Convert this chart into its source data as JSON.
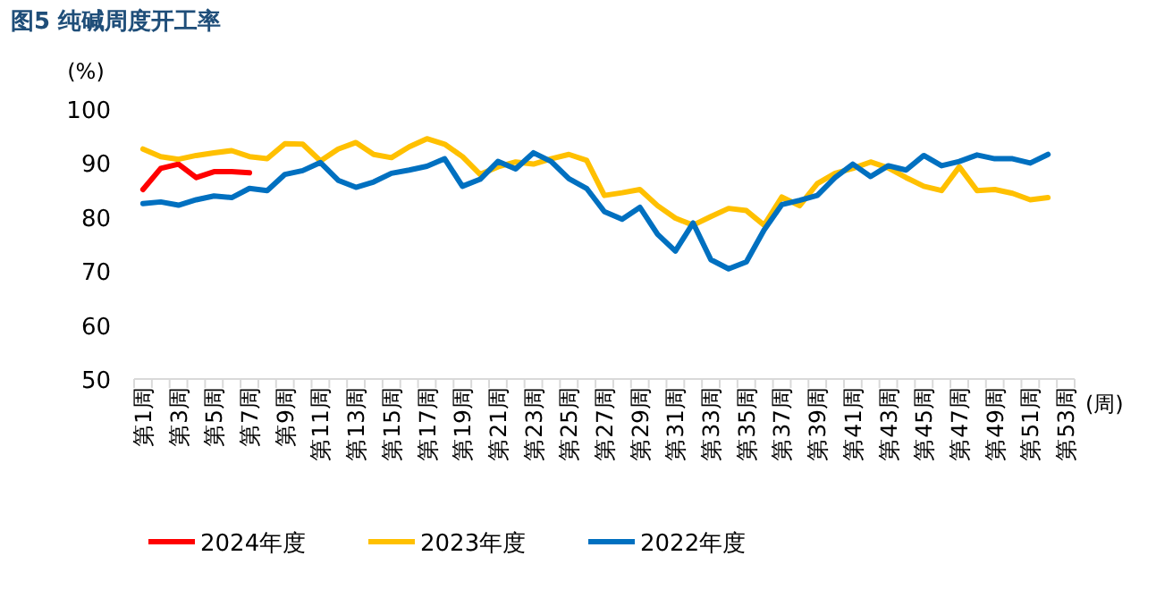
{
  "chart_data": {
    "type": "line",
    "title": "图5  纯碱周度开工率",
    "ylabel": "(%)",
    "xlabel": "(周)",
    "categories": [
      "第1周",
      null,
      "第3周",
      null,
      "第5周",
      null,
      "第7周",
      null,
      "第9周",
      null,
      "第11周",
      null,
      "第13周",
      null,
      "第15周",
      null,
      "第17周",
      null,
      "第19周",
      null,
      "第21周",
      null,
      "第23周",
      null,
      "第25周",
      null,
      "第27周",
      null,
      "第29周",
      null,
      "第31周",
      null,
      "第33周",
      null,
      "第35周",
      null,
      "第37周",
      null,
      "第39周",
      null,
      "第41周",
      null,
      "第43周",
      null,
      "第45周",
      null,
      "第47周",
      null,
      "第49周",
      null,
      "第51周",
      null,
      "第53周"
    ],
    "series": [
      {
        "name": "2024年度",
        "color": "#ff0000",
        "values": [
          85.1,
          89.0,
          89.8,
          87.3,
          88.4,
          88.4,
          88.2,
          null,
          null,
          null,
          null,
          null,
          null,
          null,
          null,
          null,
          null,
          null,
          null,
          null,
          null,
          null,
          null,
          null,
          null,
          null,
          null,
          null,
          null,
          null,
          null,
          null,
          null,
          null,
          null,
          null,
          null,
          null,
          null,
          null,
          null,
          null,
          null,
          null,
          null,
          null,
          null,
          null,
          null,
          null,
          null,
          null,
          null
        ]
      },
      {
        "name": "2023年度",
        "color": "#ffc000",
        "values": [
          92.6,
          91.2,
          90.7,
          91.4,
          91.9,
          92.3,
          91.2,
          90.8,
          93.6,
          93.5,
          90.4,
          92.6,
          93.8,
          91.6,
          91.0,
          93.0,
          94.5,
          93.5,
          91.2,
          87.9,
          89.3,
          90.2,
          89.8,
          90.8,
          91.6,
          90.5,
          84.0,
          84.5,
          85.1,
          82.1,
          79.8,
          78.5,
          80.1,
          81.6,
          81.2,
          78.5,
          83.7,
          82.1,
          86.2,
          88.1,
          89.0,
          90.2,
          89.1,
          87.3,
          85.7,
          84.9,
          89.3,
          84.9,
          85.1,
          84.4,
          83.2,
          83.6,
          null
        ]
      },
      {
        "name": "2022年度",
        "color": "#0070c0",
        "values": [
          82.5,
          82.8,
          82.2,
          83.2,
          83.9,
          83.6,
          85.3,
          84.9,
          87.9,
          88.6,
          90.1,
          86.8,
          85.5,
          86.5,
          88.1,
          88.7,
          89.4,
          90.8,
          85.7,
          87.0,
          90.3,
          88.9,
          91.9,
          90.3,
          87.1,
          85.3,
          81.0,
          79.6,
          81.8,
          76.8,
          73.7,
          78.9,
          72.1,
          70.4,
          71.7,
          77.6,
          82.3,
          83.1,
          84.0,
          87.3,
          89.8,
          87.5,
          89.5,
          88.7,
          91.4,
          89.5,
          90.3,
          91.5,
          90.8,
          90.8,
          90.0,
          91.6,
          null
        ]
      }
    ],
    "ylim": [
      50,
      100
    ],
    "yticks": [
      50,
      60,
      70,
      80,
      90,
      100
    ],
    "grid": false,
    "legend": "bottom",
    "marker": "none",
    "line_style": "solid"
  }
}
